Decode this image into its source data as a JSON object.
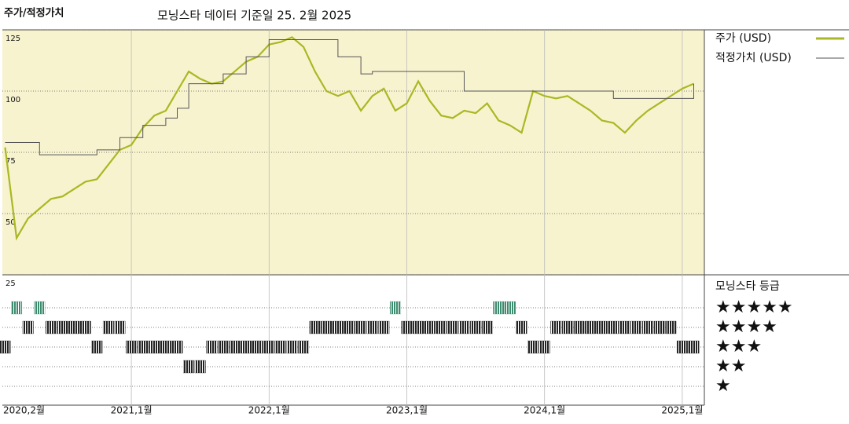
{
  "chart_data": {
    "type": "line",
    "title": "주가/적정가치",
    "subtitle": "모닝스타 데이터 기준일 25. 2월 2025",
    "x": [
      "2020-02",
      "2020-03",
      "2020-04",
      "2020-05",
      "2020-06",
      "2020-07",
      "2020-08",
      "2020-09",
      "2020-10",
      "2020-11",
      "2020-12",
      "2021-01",
      "2021-02",
      "2021-03",
      "2021-04",
      "2021-05",
      "2021-06",
      "2021-07",
      "2021-08",
      "2021-09",
      "2021-10",
      "2021-11",
      "2021-12",
      "2022-01",
      "2022-02",
      "2022-03",
      "2022-04",
      "2022-05",
      "2022-06",
      "2022-07",
      "2022-08",
      "2022-09",
      "2022-10",
      "2022-11",
      "2022-12",
      "2023-01",
      "2023-02",
      "2023-03",
      "2023-04",
      "2023-05",
      "2023-06",
      "2023-07",
      "2023-08",
      "2023-09",
      "2023-10",
      "2023-11",
      "2023-12",
      "2024-01",
      "2024-02",
      "2024-03",
      "2024-04",
      "2024-05",
      "2024-06",
      "2024-07",
      "2024-08",
      "2024-09",
      "2024-10",
      "2024-11",
      "2024-12",
      "2025-01",
      "2025-02"
    ],
    "series": [
      {
        "name": "주가 (USD)",
        "color": "#a9b823",
        "values": [
          77,
          40,
          48,
          52,
          56,
          57,
          60,
          63,
          64,
          70,
          76,
          78,
          85,
          90,
          92,
          100,
          108,
          105,
          103,
          104,
          108,
          112,
          114,
          119,
          120,
          122,
          118,
          108,
          100,
          98,
          100,
          92,
          98,
          101,
          92,
          95,
          104,
          96,
          90,
          89,
          92,
          91,
          95,
          88,
          86,
          83,
          100,
          98,
          97,
          98,
          95,
          92,
          88,
          87,
          83,
          88,
          92,
          95,
          98,
          101,
          103
        ]
      },
      {
        "name": "적정가치 (USD)",
        "color": "#555555",
        "step": true,
        "values": [
          79,
          79,
          79,
          74,
          74,
          74,
          74,
          74,
          76,
          76,
          81,
          81,
          86,
          86,
          89,
          93,
          103,
          103,
          103,
          107,
          107,
          114,
          114,
          121,
          121,
          121,
          121,
          121,
          121,
          114,
          114,
          107,
          108,
          108,
          108,
          108,
          108,
          108,
          108,
          108,
          100,
          100,
          100,
          100,
          100,
          100,
          100,
          100,
          100,
          100,
          100,
          100,
          100,
          97,
          97,
          97,
          97,
          97,
          97,
          97,
          103
        ]
      }
    ],
    "ylim": [
      25,
      125
    ],
    "yticks": [
      25,
      50,
      75,
      100,
      125
    ],
    "xticks": [
      {
        "value": "2020-02",
        "label": "2020,2월"
      },
      {
        "value": "2021-01",
        "label": "2021,1월"
      },
      {
        "value": "2022-01",
        "label": "2022,1월"
      },
      {
        "value": "2023-01",
        "label": "2023,1월"
      },
      {
        "value": "2024-01",
        "label": "2024,1월"
      },
      {
        "value": "2025-01",
        "label": "2025,1월"
      }
    ],
    "grid": true,
    "background": "#f7f3cf",
    "ratings": {
      "title": "모닝스타 등급",
      "values": [
        3,
        5,
        4,
        5,
        4,
        4,
        4,
        4,
        3,
        4,
        4,
        3,
        3,
        3,
        3,
        3,
        2,
        2,
        3,
        3,
        3,
        3,
        3,
        3,
        3,
        3,
        3,
        4,
        4,
        4,
        4,
        4,
        4,
        4,
        5,
        4,
        4,
        4,
        4,
        4,
        4,
        4,
        4,
        5,
        5,
        4,
        3,
        3,
        4,
        4,
        4,
        4,
        4,
        4,
        4,
        4,
        4,
        4,
        4,
        3,
        3
      ],
      "levels": [
        {
          "value": 5,
          "label": "★★★★★"
        },
        {
          "value": 4,
          "label": "★★★★"
        },
        {
          "value": 3,
          "label": "★★★"
        },
        {
          "value": 2,
          "label": "★★"
        },
        {
          "value": 1,
          "label": "★"
        }
      ],
      "color": "#222222",
      "top_color": "#3d8b6e"
    }
  }
}
